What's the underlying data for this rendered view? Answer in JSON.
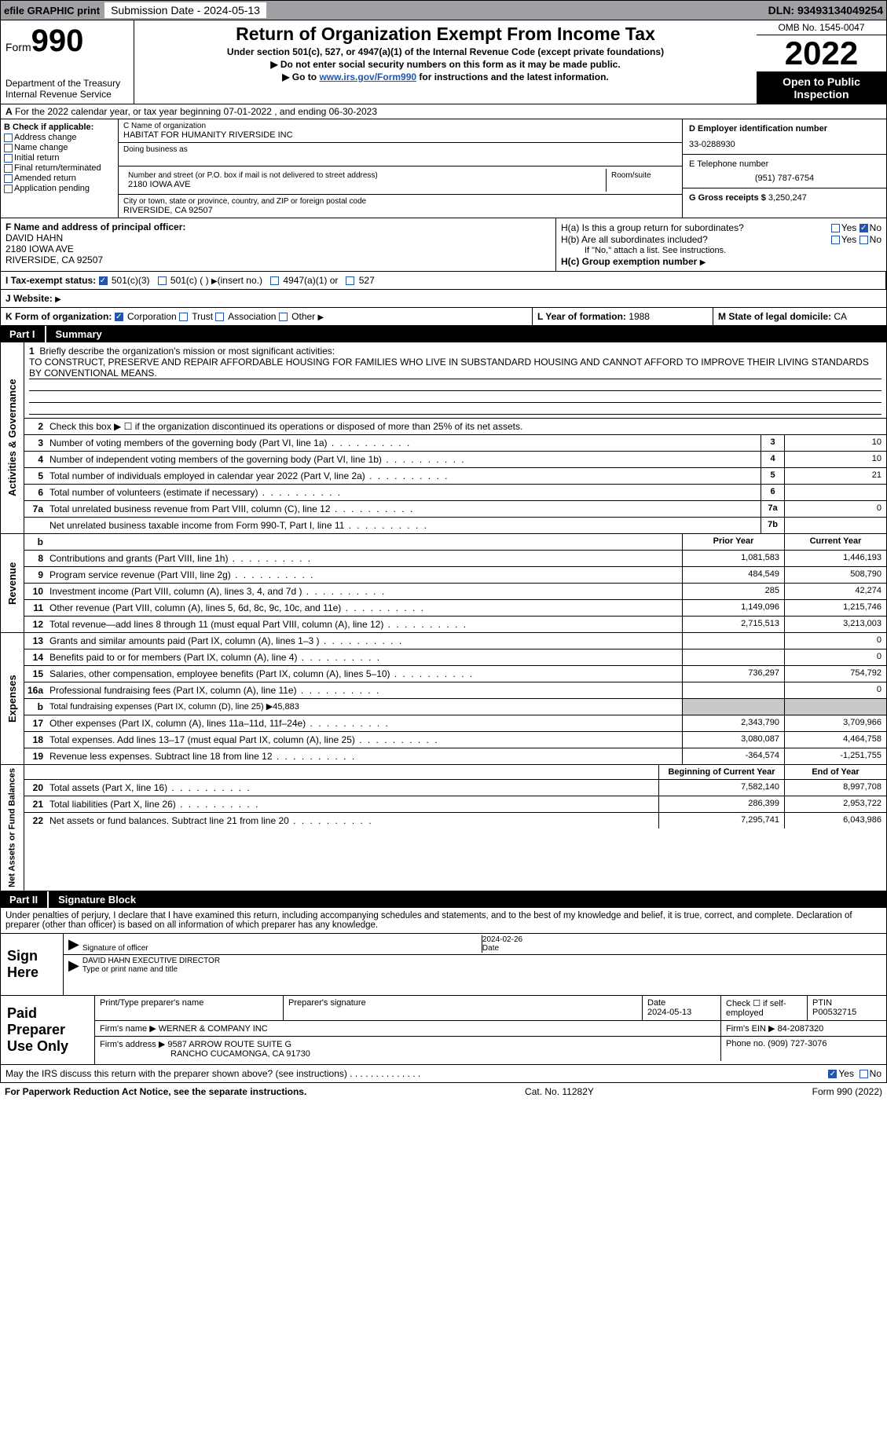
{
  "topbar": {
    "efile": "efile GRAPHIC print",
    "submission_label": "Submission Date - 2024-05-13",
    "dln": "DLN: 93493134049254"
  },
  "header": {
    "form_word": "Form",
    "form_num": "990",
    "dept": "Department of the Treasury Internal Revenue Service",
    "title": "Return of Organization Exempt From Income Tax",
    "sub": "Under section 501(c), 527, or 4947(a)(1) of the Internal Revenue Code (except private foundations)",
    "warn": "Do not enter social security numbers on this form as it may be made public.",
    "goto_pre": "Go to ",
    "goto_link": "www.irs.gov/Form990",
    "goto_post": " for instructions and the latest information.",
    "omb": "OMB No. 1545-0047",
    "year": "2022",
    "open": "Open to Public Inspection"
  },
  "a": {
    "text": "For the 2022 calendar year, or tax year beginning 07-01-2022    , and ending 06-30-2023"
  },
  "b": {
    "title": "B Check if applicable:",
    "items": [
      "Address change",
      "Name change",
      "Initial return",
      "Final return/terminated",
      "Amended return",
      "Application pending"
    ]
  },
  "c": {
    "name_label": "C Name of organization",
    "name": "HABITAT FOR HUMANITY RIVERSIDE INC",
    "dba_label": "Doing business as",
    "street_label": "Number and street (or P.O. box if mail is not delivered to street address)",
    "room_label": "Room/suite",
    "street": "2180 IOWA AVE",
    "city_label": "City or town, state or province, country, and ZIP or foreign postal code",
    "city": "RIVERSIDE, CA  92507"
  },
  "d": {
    "label": "D Employer identification number",
    "value": "33-0288930",
    "e_label": "E Telephone number",
    "phone": "(951) 787-6754",
    "g_label": "G Gross receipts $",
    "gross": "3,250,247"
  },
  "f": {
    "label": "F  Name and address of principal officer:",
    "name": "DAVID HAHN",
    "street": "2180 IOWA AVE",
    "city": "RIVERSIDE, CA  92507"
  },
  "h": {
    "a_label": "H(a)  Is this a group return for subordinates?",
    "b_label": "H(b)  Are all subordinates included?",
    "note": "If \"No,\" attach a list. See instructions.",
    "c_label": "H(c)  Group exemption number",
    "yes": "Yes",
    "no": "No"
  },
  "i": {
    "label": "I  Tax-exempt status:",
    "opts": [
      "501(c)(3)",
      "501(c) (  )",
      "(insert no.)",
      "4947(a)(1) or",
      "527"
    ]
  },
  "j": {
    "label": "J  Website:"
  },
  "k": {
    "label": "K Form of organization:",
    "opts": [
      "Corporation",
      "Trust",
      "Association",
      "Other"
    ]
  },
  "l": {
    "label": "L Year of formation:",
    "value": "1988"
  },
  "m": {
    "label": "M State of legal domicile:",
    "value": "CA"
  },
  "parts": {
    "p1_num": "Part I",
    "p1_title": "Summary",
    "p2_num": "Part II",
    "p2_title": "Signature Block"
  },
  "mission": {
    "num": "1",
    "label": "Briefly describe the organization's mission or most significant activities:",
    "text": "TO CONSTRUCT, PRESERVE AND REPAIR AFFORDABLE HOUSING FOR FAMILIES WHO LIVE IN SUBSTANDARD HOUSING AND CANNOT AFFORD TO IMPROVE THEIR LIVING STANDARDS BY CONVENTIONAL MEANS."
  },
  "summary": {
    "tab1": "Activities & Governance",
    "tab2": "Revenue",
    "tab3": "Expenses",
    "tab4": "Net Assets or Fund Balances",
    "prior_hdr": "Prior Year",
    "curr_hdr": "Current Year",
    "begin_hdr": "Beginning of Current Year",
    "end_hdr": "End of Year",
    "rows_gov": [
      {
        "n": "2",
        "d": "Check this box ▶ ☐ if the organization discontinued its operations or disposed of more than 25% of its net assets."
      },
      {
        "n": "3",
        "d": "Number of voting members of the governing body (Part VI, line 1a)",
        "box": "3",
        "v": "10"
      },
      {
        "n": "4",
        "d": "Number of independent voting members of the governing body (Part VI, line 1b)",
        "box": "4",
        "v": "10"
      },
      {
        "n": "5",
        "d": "Total number of individuals employed in calendar year 2022 (Part V, line 2a)",
        "box": "5",
        "v": "21"
      },
      {
        "n": "6",
        "d": "Total number of volunteers (estimate if necessary)",
        "box": "6",
        "v": ""
      },
      {
        "n": "7a",
        "d": "Total unrelated business revenue from Part VIII, column (C), line 12",
        "box": "7a",
        "v": "0"
      },
      {
        "n": "",
        "d": "Net unrelated business taxable income from Form 990-T, Part I, line 11",
        "box": "7b",
        "v": ""
      }
    ],
    "rows_rev": [
      {
        "n": "8",
        "d": "Contributions and grants (Part VIII, line 1h)",
        "p": "1,081,583",
        "c": "1,446,193"
      },
      {
        "n": "9",
        "d": "Program service revenue (Part VIII, line 2g)",
        "p": "484,549",
        "c": "508,790"
      },
      {
        "n": "10",
        "d": "Investment income (Part VIII, column (A), lines 3, 4, and 7d )",
        "p": "285",
        "c": "42,274"
      },
      {
        "n": "11",
        "d": "Other revenue (Part VIII, column (A), lines 5, 6d, 8c, 9c, 10c, and 11e)",
        "p": "1,149,096",
        "c": "1,215,746"
      },
      {
        "n": "12",
        "d": "Total revenue—add lines 8 through 11 (must equal Part VIII, column (A), line 12)",
        "p": "2,715,513",
        "c": "3,213,003"
      }
    ],
    "rows_exp": [
      {
        "n": "13",
        "d": "Grants and similar amounts paid (Part IX, column (A), lines 1–3 )",
        "p": "",
        "c": "0"
      },
      {
        "n": "14",
        "d": "Benefits paid to or for members (Part IX, column (A), line 4)",
        "p": "",
        "c": "0"
      },
      {
        "n": "15",
        "d": "Salaries, other compensation, employee benefits (Part IX, column (A), lines 5–10)",
        "p": "736,297",
        "c": "754,792"
      },
      {
        "n": "16a",
        "d": "Professional fundraising fees (Part IX, column (A), line 11e)",
        "p": "",
        "c": "0"
      },
      {
        "n": "b",
        "d": "Total fundraising expenses (Part IX, column (D), line 25) ▶45,883",
        "gray": true
      },
      {
        "n": "17",
        "d": "Other expenses (Part IX, column (A), lines 11a–11d, 11f–24e)",
        "p": "2,343,790",
        "c": "3,709,966"
      },
      {
        "n": "18",
        "d": "Total expenses. Add lines 13–17 (must equal Part IX, column (A), line 25)",
        "p": "3,080,087",
        "c": "4,464,758"
      },
      {
        "n": "19",
        "d": "Revenue less expenses. Subtract line 18 from line 12",
        "p": "-364,574",
        "c": "-1,251,755"
      }
    ],
    "rows_net": [
      {
        "n": "20",
        "d": "Total assets (Part X, line 16)",
        "p": "7,582,140",
        "c": "8,997,708"
      },
      {
        "n": "21",
        "d": "Total liabilities (Part X, line 26)",
        "p": "286,399",
        "c": "2,953,722"
      },
      {
        "n": "22",
        "d": "Net assets or fund balances. Subtract line 21 from line 20",
        "p": "7,295,741",
        "c": "6,043,986"
      }
    ]
  },
  "sig": {
    "declare": "Under penalties of perjury, I declare that I have examined this return, including accompanying schedules and statements, and to the best of my knowledge and belief, it is true, correct, and complete. Declaration of preparer (other than officer) is based on all information of which preparer has any knowledge.",
    "sign_here": "Sign Here",
    "sig_officer": "Signature of officer",
    "date": "Date",
    "date_val": "2024-02-26",
    "name_title": "DAVID HAHN  EXECUTIVE DIRECTOR",
    "type_name": "Type or print name and title"
  },
  "prep": {
    "title": "Paid Preparer Use Only",
    "print_name": "Print/Type preparer's name",
    "prep_sig": "Preparer's signature",
    "date_lbl": "Date",
    "date": "2024-05-13",
    "check_lbl": "Check ☐ if self-employed",
    "ptin_lbl": "PTIN",
    "ptin": "P00532715",
    "firm_name_lbl": "Firm's name    ▶",
    "firm_name": "WERNER & COMPANY INC",
    "firm_ein_lbl": "Firm's EIN ▶",
    "firm_ein": "84-2087320",
    "firm_addr_lbl": "Firm's address ▶",
    "firm_addr1": "9587 ARROW ROUTE SUITE G",
    "firm_addr2": "RANCHO CUCAMONGA, CA  91730",
    "phone_lbl": "Phone no.",
    "phone": "(909) 727-3076"
  },
  "may": {
    "text": "May the IRS discuss this return with the preparer shown above? (see instructions)",
    "yes": "Yes",
    "no": "No"
  },
  "footer": {
    "left": "For Paperwork Reduction Act Notice, see the separate instructions.",
    "mid": "Cat. No. 11282Y",
    "right": "Form 990 (2022)"
  },
  "colors": {
    "topbar_bg": "#9ea0a3",
    "link": "#2255aa",
    "gray": "#c8c9cb"
  }
}
